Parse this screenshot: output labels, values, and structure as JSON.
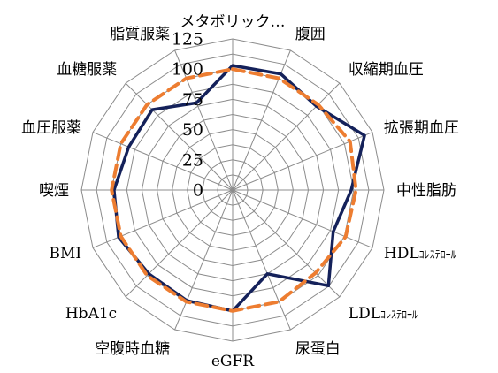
{
  "chart_data": {
    "type": "radar",
    "categories": [
      "メタボリック…",
      "腹囲",
      "収縮期血圧",
      "拡張期血圧",
      "中性脂肪",
      "HDLコレステロール",
      "LDLコレステロール",
      "尿蛋白",
      "eGFR",
      "空腹時血糖",
      "HbA1c",
      "BMI",
      "喫煙",
      "血圧服薬",
      "血糖服薬",
      "脂質服薬"
    ],
    "category_display": [
      {
        "main": "メタボリック…",
        "small": ""
      },
      {
        "main": "腹囲",
        "small": ""
      },
      {
        "main": "収縮期血圧",
        "small": ""
      },
      {
        "main": "拡張期血圧",
        "small": ""
      },
      {
        "main": "中性脂肪",
        "small": ""
      },
      {
        "main": "HDL",
        "small": "ｺﾚｽﾃﾛｰﾙ"
      },
      {
        "main": "LDL",
        "small": "ｺﾚｽﾃﾛｰﾙ"
      },
      {
        "main": "尿蛋白",
        "small": ""
      },
      {
        "main": "eGFR",
        "small": ""
      },
      {
        "main": "空腹時血糖",
        "small": ""
      },
      {
        "main": "HbA1c",
        "small": ""
      },
      {
        "main": "BMI",
        "small": ""
      },
      {
        "main": "喫煙",
        "small": ""
      },
      {
        "main": "血圧服薬",
        "small": ""
      },
      {
        "main": "血糖服薬",
        "small": ""
      },
      {
        "main": "脂質服薬",
        "small": ""
      }
    ],
    "rlim": [
      0,
      125
    ],
    "ticks": [
      "0",
      "25",
      "50",
      "75",
      "100",
      "125"
    ],
    "tick_values": [
      0,
      25,
      50,
      75,
      100,
      125
    ],
    "grid": true,
    "series": [
      {
        "color": "#14215a",
        "style": "solid",
        "values": [
          103,
          104,
          98,
          118,
          98,
          90,
          112,
          75,
          100,
          99,
          98,
          102,
          98,
          93,
          94,
          78
        ]
      },
      {
        "color": "#ed7d31",
        "style": "dashed",
        "values": [
          100,
          100,
          100,
          105,
          102,
          101,
          97,
          100,
          100,
          100,
          100,
          100,
          100,
          100,
          100,
          100
        ]
      }
    ]
  }
}
